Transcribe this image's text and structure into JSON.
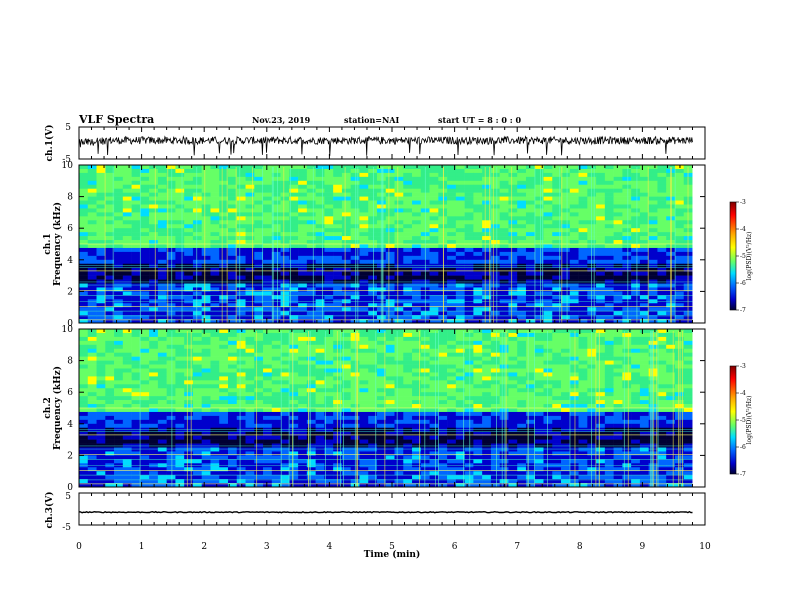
{
  "header": {
    "title": "VLF Spectra",
    "date": "Nov.23, 2019",
    "station": "station=NAI",
    "start": "start  UT =   8 : 0  : 0"
  },
  "colorbar": {
    "label": "log(PSD)(V²/Hz)",
    "ticks": [
      "-3",
      "-4",
      "-5",
      "-6",
      "-7"
    ],
    "colors": [
      "#7f0000",
      "#ff0000",
      "#ffaa00",
      "#ffff00",
      "#66ff66",
      "#00ddff",
      "#0066ff",
      "#0000cc",
      "#000033"
    ]
  },
  "chart_data": [
    {
      "type": "line",
      "name": "ch1-waveform",
      "ylabel": "ch.1(V)",
      "ylim": [
        -5,
        5
      ],
      "yticks": [
        "5",
        "-5"
      ],
      "xlim": [
        0,
        10
      ],
      "description_values": {
        "mean_level": 0.8,
        "noise_amplitude": 1.2
      }
    },
    {
      "type": "heatmap",
      "name": "ch1-spectrogram",
      "ylabel": "ch.1\nFrequency  (kHz)",
      "ylabel_line1": "ch.1",
      "ylabel_line2": "Frequency  (kHz)",
      "ylim": [
        0,
        10
      ],
      "yticks": [
        "0",
        "2",
        "4",
        "6",
        "8",
        "10"
      ],
      "xlim": [
        0,
        10
      ],
      "zlim": [
        -7,
        -3
      ],
      "bands": [
        {
          "from": 4.8,
          "to": 10,
          "level": "green"
        },
        {
          "from": 3.8,
          "to": 4.8,
          "level": "dark-blue"
        },
        {
          "from": 2.6,
          "to": 3.8,
          "level": "black-blue"
        },
        {
          "from": 0,
          "to": 2.6,
          "level": "mixed-blue"
        }
      ]
    },
    {
      "type": "heatmap",
      "name": "ch2-spectrogram",
      "ylabel_line1": "ch.2",
      "ylabel_line2": "Frequency  (kHz)",
      "ylim": [
        0,
        10
      ],
      "yticks": [
        "0",
        "2",
        "4",
        "6",
        "8",
        "10"
      ],
      "xlim": [
        0,
        10
      ],
      "zlim": [
        -7,
        -3
      ]
    },
    {
      "type": "line",
      "name": "ch3-waveform",
      "ylabel": "ch.3(V)",
      "ylim": [
        -5,
        5
      ],
      "yticks": [
        "5",
        "-5"
      ],
      "xlim": [
        0,
        10
      ],
      "description_values": {
        "mean_level": -1.0
      }
    }
  ],
  "xaxis": {
    "label": "Time  (min)",
    "ticks": [
      "0",
      "1",
      "2",
      "3",
      "4",
      "5",
      "6",
      "7",
      "8",
      "9",
      "10"
    ]
  }
}
